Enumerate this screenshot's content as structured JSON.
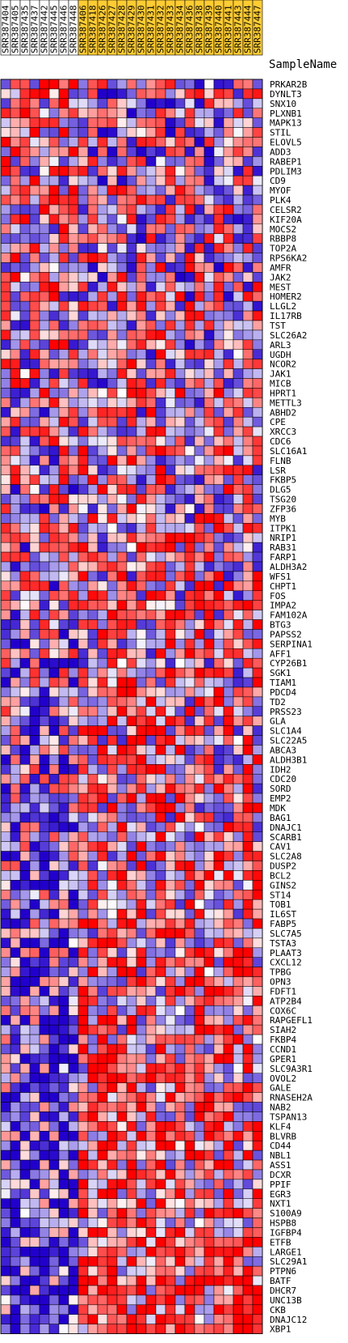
{
  "chart_data": {
    "type": "heatmap",
    "header_label": "SampleName",
    "columns": [
      {
        "name": "SRR387404",
        "group_color": "#ffffff"
      },
      {
        "name": "SRR387405",
        "group_color": "#ffffff"
      },
      {
        "name": "SRR387435",
        "group_color": "#ffffff"
      },
      {
        "name": "SRR387437",
        "group_color": "#ffffff"
      },
      {
        "name": "SRR387442",
        "group_color": "#ffffff"
      },
      {
        "name": "SRR387445",
        "group_color": "#ffffff"
      },
      {
        "name": "SRR387446",
        "group_color": "#ffffff"
      },
      {
        "name": "SRR387448",
        "group_color": "#ffffff"
      },
      {
        "name": "SRR387406",
        "group_color": "#ffcc33"
      },
      {
        "name": "SRR387418",
        "group_color": "#ffcc33"
      },
      {
        "name": "SRR387426",
        "group_color": "#ffcc33"
      },
      {
        "name": "SRR387427",
        "group_color": "#ffcc33"
      },
      {
        "name": "SRR387428",
        "group_color": "#ffcc33"
      },
      {
        "name": "SRR387429",
        "group_color": "#ffcc33"
      },
      {
        "name": "SRR387430",
        "group_color": "#ffcc33"
      },
      {
        "name": "SRR387431",
        "group_color": "#ffcc33"
      },
      {
        "name": "SRR387432",
        "group_color": "#ffcc33"
      },
      {
        "name": "SRR387433",
        "group_color": "#ffcc33"
      },
      {
        "name": "SRR387434",
        "group_color": "#ffcc33"
      },
      {
        "name": "SRR387436",
        "group_color": "#ffcc33"
      },
      {
        "name": "SRR387438",
        "group_color": "#ffcc33"
      },
      {
        "name": "SRR387439",
        "group_color": "#ffcc33"
      },
      {
        "name": "SRR387440",
        "group_color": "#ffcc33"
      },
      {
        "name": "SRR387441",
        "group_color": "#ffcc33"
      },
      {
        "name": "SRR387443",
        "group_color": "#ffcc33"
      },
      {
        "name": "SRR387444",
        "group_color": "#ffcc33"
      },
      {
        "name": "SRR387447",
        "group_color": "#ffcc33"
      }
    ],
    "rows": [
      "PRKAR2B",
      "DYNLT3",
      "SNX10",
      "PLXNB1",
      "MAPK13",
      "STIL",
      "ELOVL5",
      "ADD3",
      "RABEP1",
      "PDLIM3",
      "CD9",
      "MYOF",
      "PLK4",
      "CELSR2",
      "KIF20A",
      "MOCS2",
      "RBBP8",
      "TOP2A",
      "RPS6KA2",
      "AMFR",
      "JAK2",
      "MEST",
      "HOMER2",
      "LLGL2",
      "IL17RB",
      "TST",
      "SLC26A2",
      "ARL3",
      "UGDH",
      "NCOR2",
      "JAK1",
      "MICB",
      "HPRT1",
      "METTL3",
      "ABHD2",
      "CPE",
      "XRCC3",
      "CDC6",
      "SLC16A1",
      "FLNB",
      "LSR",
      "FKBP5",
      "DLG5",
      "TSG20",
      "ZFP36",
      "MYB",
      "ITPK1",
      "NRIP1",
      "RAB31",
      "FARP1",
      "ALDH3A2",
      "WFS1",
      "CHPT1",
      "FOS",
      "IMPA2",
      "FAM102A",
      "BTG3",
      "PAPSS2",
      "SERPINA1",
      "AFF1",
      "CYP26B1",
      "SGK1",
      "TIAM1",
      "PDCD4",
      "TD2",
      "PRSS23",
      "GLA",
      "SLC1A4",
      "SLC22A5",
      "ABCA3",
      "ALDH3B1",
      "IDH2",
      "CDC20",
      "SORD",
      "EMP2",
      "MDK",
      "BAG1",
      "DNAJC1",
      "SCARB1",
      "CAV1",
      "SLC2A8",
      "DUSP2",
      "BCL2",
      "GINS2",
      "ST14",
      "TOB1",
      "IL6ST",
      "FABP5",
      "SLC7A5",
      "TSTA3",
      "PLAAT3",
      "CXCL12",
      "TPBG",
      "OPN3",
      "FDFT1",
      "ATP2B4",
      "COX6C",
      "RAPGEFL1",
      "SIAH2",
      "FKBP4",
      "CCND1",
      "GPER1",
      "SLC9A3R1",
      "OVOL2",
      "GALE",
      "RNASEH2A",
      "NAB2",
      "TSPAN13",
      "KLF4",
      "BLVRB",
      "CD44",
      "NBL1",
      "ASS1",
      "DCXR",
      "PPIF",
      "EGR3",
      "NXT1",
      "S100A9",
      "HSPB8",
      "IGFBP4",
      "ETFB",
      "LARGE1",
      "SLC29A1",
      "PTPN6",
      "BATF",
      "DHCR7",
      "UNC13B",
      "CKB",
      "DNAJC12",
      "XBP1"
    ],
    "color_scale": {
      "low": "#2200cc",
      "mid": "#ffffff",
      "high": "#ff0000"
    },
    "value_range": [
      -1,
      1
    ],
    "seed": 7919
  }
}
